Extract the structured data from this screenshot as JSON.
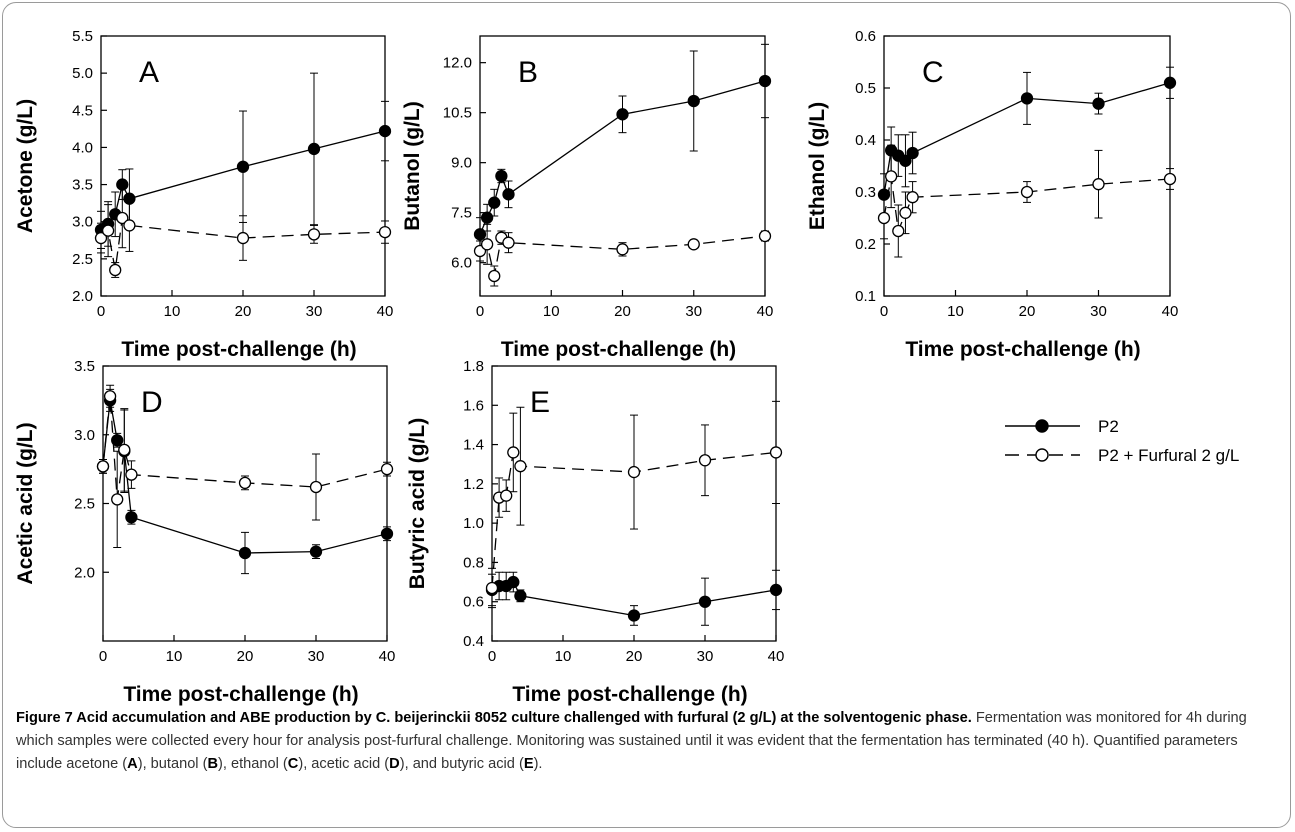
{
  "chart_data": [
    {
      "id": "A",
      "type": "line",
      "panel_label": "A",
      "ylabel": "Acetone (g/L)",
      "xlabel": "Time post-challenge (h)",
      "xlim": [
        0,
        40
      ],
      "ylim": [
        2.0,
        5.5
      ],
      "xticks": [
        0,
        10,
        20,
        30,
        40
      ],
      "yticks": [
        2.0,
        2.5,
        3.0,
        3.5,
        4.0,
        4.5,
        5.0,
        5.5
      ],
      "tick_decimals": 1,
      "series": [
        {
          "name": "P2",
          "x": [
            0,
            1,
            2,
            3,
            4,
            20,
            30,
            40
          ],
          "y": [
            2.89,
            2.97,
            3.1,
            3.5,
            3.31,
            3.74,
            3.98,
            4.22
          ],
          "err": [
            0.25,
            0.3,
            0.3,
            0.2,
            0.4,
            0.75,
            1.02,
            0.4
          ]
        },
        {
          "name": "P2 + Furfural 2 g/L",
          "x": [
            0,
            1,
            2,
            3,
            4,
            20,
            30,
            40
          ],
          "y": [
            2.78,
            2.88,
            2.35,
            3.05,
            2.95,
            2.78,
            2.83,
            2.86
          ],
          "err": [
            0.2,
            0.35,
            0.1,
            0.4,
            0.35,
            0.3,
            0.12,
            0.15
          ]
        }
      ]
    },
    {
      "id": "B",
      "type": "line",
      "panel_label": "B",
      "ylabel": "Butanol (g/L)",
      "xlabel": "Time post-challenge (h)",
      "xlim": [
        0,
        40
      ],
      "ylim": [
        5.0,
        12.8
      ],
      "xticks": [
        0,
        10,
        20,
        30,
        40
      ],
      "yticks": [
        6.0,
        7.5,
        9.0,
        10.5,
        12.0
      ],
      "tick_decimals": 1,
      "series": [
        {
          "name": "P2",
          "x": [
            0,
            1,
            2,
            3,
            4,
            20,
            30,
            40
          ],
          "y": [
            6.85,
            7.35,
            7.8,
            8.6,
            8.05,
            10.45,
            10.85,
            11.45
          ],
          "err": [
            0.5,
            0.4,
            0.4,
            0.2,
            0.4,
            0.55,
            1.5,
            1.1
          ]
        },
        {
          "name": "P2 + Furfural 2 g/L",
          "x": [
            0,
            1,
            2,
            3,
            4,
            20,
            30,
            40
          ],
          "y": [
            6.35,
            6.55,
            5.6,
            6.75,
            6.6,
            6.4,
            6.55,
            6.8
          ],
          "err": [
            0.3,
            0.6,
            0.3,
            0.2,
            0.3,
            0.2,
            0.1,
            0.15
          ]
        }
      ]
    },
    {
      "id": "C",
      "type": "line",
      "panel_label": "C",
      "ylabel": "Ethanol (g/L)",
      "xlabel": "Time post-challenge (h)",
      "xlim": [
        0,
        40
      ],
      "ylim": [
        0.1,
        0.6
      ],
      "xticks": [
        0,
        10,
        20,
        30,
        40
      ],
      "yticks": [
        0.1,
        0.2,
        0.3,
        0.4,
        0.5,
        0.6
      ],
      "tick_decimals": 1,
      "series": [
        {
          "name": "P2",
          "x": [
            0,
            1,
            2,
            3,
            4,
            20,
            30,
            40
          ],
          "y": [
            0.295,
            0.38,
            0.37,
            0.36,
            0.375,
            0.48,
            0.47,
            0.51
          ],
          "err": [
            0.04,
            0.045,
            0.04,
            0.05,
            0.04,
            0.05,
            0.02,
            0.03
          ]
        },
        {
          "name": "P2 + Furfural 2 g/L",
          "x": [
            0,
            1,
            2,
            3,
            4,
            20,
            30,
            40
          ],
          "y": [
            0.25,
            0.33,
            0.225,
            0.26,
            0.29,
            0.3,
            0.315,
            0.325
          ],
          "err": [
            0.04,
            0.06,
            0.05,
            0.04,
            0.03,
            0.02,
            0.065,
            0.02
          ]
        }
      ]
    },
    {
      "id": "D",
      "type": "line",
      "panel_label": "D",
      "ylabel": "Acetic acid (g/L)",
      "xlabel": "Time post-challenge (h)",
      "xlim": [
        0,
        40
      ],
      "ylim": [
        1.5,
        3.5
      ],
      "xticks": [
        0,
        10,
        20,
        30,
        40
      ],
      "yticks": [
        2.0,
        2.5,
        3.0,
        3.5
      ],
      "tick_decimals": 1,
      "series": [
        {
          "name": "P2",
          "x": [
            0,
            1,
            2,
            3,
            4,
            20,
            30,
            40
          ],
          "y": [
            2.77,
            3.25,
            2.96,
            2.88,
            2.4,
            2.14,
            2.15,
            2.28
          ],
          "err": [
            0.05,
            0.08,
            0.05,
            0.3,
            0.05,
            0.15,
            0.05,
            0.05
          ]
        },
        {
          "name": "P2 + Furfural 2 g/L",
          "x": [
            0,
            1,
            2,
            3,
            4,
            20,
            30,
            40
          ],
          "y": [
            2.77,
            3.28,
            2.53,
            2.89,
            2.71,
            2.65,
            2.62,
            2.75
          ],
          "err": [
            0.05,
            0.08,
            0.35,
            0.3,
            0.1,
            0.05,
            0.24,
            0.05
          ]
        }
      ]
    },
    {
      "id": "E",
      "type": "line",
      "panel_label": "E",
      "ylabel": "Butyric acid (g/L)",
      "xlabel": "Time post-challenge (h)",
      "xlim": [
        0,
        40
      ],
      "ylim": [
        0.4,
        1.8
      ],
      "xticks": [
        0,
        10,
        20,
        30,
        40
      ],
      "yticks": [
        0.4,
        0.6,
        0.8,
        1.0,
        1.2,
        1.4,
        1.6,
        1.8
      ],
      "tick_decimals": 1,
      "series": [
        {
          "name": "P2",
          "x": [
            0,
            1,
            2,
            3,
            4,
            20,
            30,
            40
          ],
          "y": [
            0.66,
            0.68,
            0.68,
            0.7,
            0.63,
            0.53,
            0.6,
            0.66
          ],
          "err": [
            0.08,
            0.07,
            0.07,
            0.05,
            0.03,
            0.05,
            0.12,
            0.1
          ]
        },
        {
          "name": "P2 + Furfural 2 g/L",
          "x": [
            0,
            1,
            2,
            3,
            4,
            20,
            30,
            40
          ],
          "y": [
            0.67,
            1.13,
            1.14,
            1.36,
            1.29,
            1.26,
            1.32,
            1.36
          ],
          "err": [
            0.1,
            0.1,
            0.08,
            0.2,
            0.3,
            0.29,
            0.18,
            0.26
          ]
        }
      ]
    }
  ],
  "legend": {
    "items": [
      {
        "label": "P2",
        "marker": "filled-circle",
        "line": "solid"
      },
      {
        "label": "P2 + Furfural 2 g/L",
        "marker": "open-circle",
        "line": "dashed"
      }
    ]
  },
  "caption": {
    "title": "Figure 7 Acid accumulation and ABE production by C. beijerinckii 8052 culture challenged with furfural (2 g/L) at the solventogenic phase.",
    "text_before": "Fermentation was monitored for 4h during which samples were collected every hour for analysis post-furfural challenge. Monitoring was sustained until it was evident that the fermentation has terminated (40 h). Quantified parameters include acetone (",
    "refs": [
      "A",
      "B",
      "C",
      "D",
      "E"
    ],
    "joiners": [
      "), butanol (",
      "), ethanol (",
      "), acetic acid (",
      "), and butyric acid ("
    ],
    "text_after": ")."
  },
  "colors": {
    "line": "#000000",
    "marker_fill": "#000000",
    "open_fill": "#ffffff",
    "frame": "#9a9a9a",
    "caption_text": "#333333"
  }
}
